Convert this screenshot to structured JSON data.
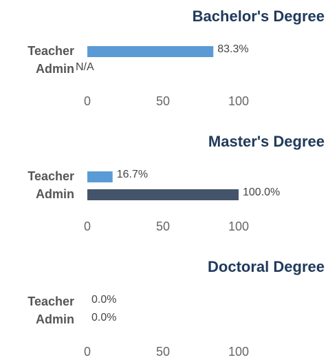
{
  "chart_data": [
    {
      "type": "bar",
      "title": "Bachelor's Degree",
      "categories": [
        "Teacher",
        "Admin"
      ],
      "values": [
        83.3,
        null
      ],
      "value_labels": [
        "83.3%",
        "N/A"
      ],
      "colors": [
        "#5b9bd5",
        "#44546a"
      ],
      "xlim": [
        0,
        100
      ],
      "xticks": [
        0,
        50,
        100
      ]
    },
    {
      "type": "bar",
      "title": "Master's Degree",
      "categories": [
        "Teacher",
        "Admin"
      ],
      "values": [
        16.7,
        100.0
      ],
      "value_labels": [
        "16.7%",
        "100.0%"
      ],
      "colors": [
        "#5b9bd5",
        "#44546a"
      ],
      "xlim": [
        0,
        100
      ],
      "xticks": [
        0,
        50,
        100
      ]
    },
    {
      "type": "bar",
      "title": "Doctoral Degree",
      "categories": [
        "Teacher",
        "Admin"
      ],
      "values": [
        0,
        0
      ],
      "value_labels": [
        "0.0%",
        "0.0%"
      ],
      "colors": [
        "#5b9bd5",
        "#44546a"
      ],
      "xlim": [
        0,
        100
      ],
      "xticks": [
        0,
        50,
        100
      ]
    }
  ]
}
